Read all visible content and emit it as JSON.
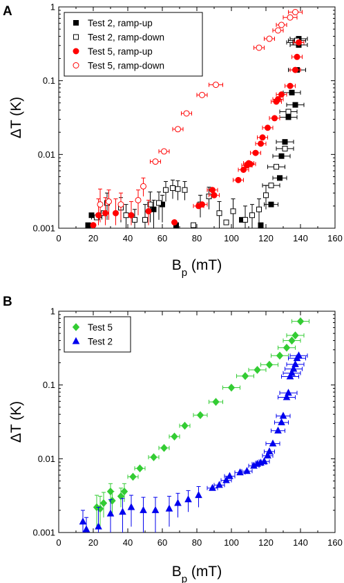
{
  "chart_data": [
    {
      "panel_label": "A",
      "type": "scatter",
      "xlabel": "B",
      "xlabel_sub": "p",
      "xlabel_unit": " (mT)",
      "ylabel": "ΔT (K)",
      "xlim": [
        0,
        160
      ],
      "ylim": [
        0.001,
        1
      ],
      "yscale": "log",
      "x_ticks": [
        "0",
        "20",
        "40",
        "60",
        "80",
        "100",
        "120",
        "140",
        "160"
      ],
      "y_ticks": [
        "0.001",
        "0.01",
        "0.1",
        "1"
      ],
      "legend_position": "top-left",
      "series": [
        {
          "name": "Test 2, ramp-up",
          "marker": "square",
          "filled": true,
          "color": "#000000",
          "points": [
            {
              "x": 17,
              "y": 0.0011
            },
            {
              "x": 19,
              "y": 0.0015
            },
            {
              "x": 55,
              "y": 0.0018,
              "ylo": 0.001,
              "yhi": 0.0024
            },
            {
              "x": 60,
              "y": 0.0021,
              "ylo": 0.0012,
              "yhi": 0.0028
            },
            {
              "x": 68,
              "y": 0.0011
            },
            {
              "x": 106,
              "y": 0.0013
            },
            {
              "x": 117,
              "y": 0.0011
            },
            {
              "x": 123,
              "y": 0.0021,
              "xerr": 4
            },
            {
              "x": 128,
              "y": 0.0048,
              "xerr": 4
            },
            {
              "x": 129,
              "y": 0.0095,
              "xerr": 5
            },
            {
              "x": 131,
              "y": 0.0148,
              "xerr": 5
            },
            {
              "x": 133,
              "y": 0.032,
              "xerr": 5
            },
            {
              "x": 135,
              "y": 0.069,
              "xerr": 5
            },
            {
              "x": 137,
              "y": 0.047,
              "xerr": 5
            },
            {
              "x": 138,
              "y": 0.14,
              "xerr": 5
            },
            {
              "x": 139,
              "y": 0.305,
              "xerr": 5
            },
            {
              "x": 139,
              "y": 0.37,
              "xerr": 5
            }
          ]
        },
        {
          "name": "Test 2, ramp-down",
          "marker": "square",
          "filled": false,
          "color": "#000000",
          "points": [
            {
              "x": 22,
              "y": 0.0014,
              "xerr": 3
            },
            {
              "x": 26,
              "y": 0.0016,
              "xerr": 3
            },
            {
              "x": 28,
              "y": 0.0022,
              "ylo": 0.0013,
              "yhi": 0.003
            },
            {
              "x": 36,
              "y": 0.0019,
              "ylo": 0.0012,
              "yhi": 0.0026
            },
            {
              "x": 39,
              "y": 0.0015,
              "ylo": 0.001,
              "yhi": 0.0021
            },
            {
              "x": 44,
              "y": 0.0013,
              "ylo": 0.001,
              "yhi": 0.0018
            },
            {
              "x": 50,
              "y": 0.0013,
              "ylo": 0.001,
              "yhi": 0.0021
            },
            {
              "x": 53,
              "y": 0.0021,
              "ylo": 0.0012,
              "yhi": 0.0031
            },
            {
              "x": 58,
              "y": 0.0022,
              "ylo": 0.0013,
              "yhi": 0.0031
            },
            {
              "x": 62,
              "y": 0.0033,
              "ylo": 0.0023,
              "yhi": 0.0043
            },
            {
              "x": 66,
              "y": 0.0035,
              "ylo": 0.0025,
              "yhi": 0.0045
            },
            {
              "x": 69,
              "y": 0.0034,
              "ylo": 0.0024,
              "yhi": 0.0044
            },
            {
              "x": 73,
              "y": 0.0033,
              "ylo": 0.0024,
              "yhi": 0.0043
            },
            {
              "x": 78,
              "y": 0.0011
            },
            {
              "x": 82,
              "y": 0.0021,
              "ylo": 0.0014,
              "yhi": 0.0028
            },
            {
              "x": 87,
              "y": 0.0027,
              "ylo": 0.0018,
              "yhi": 0.0036
            },
            {
              "x": 93,
              "y": 0.0016,
              "ylo": 0.001,
              "yhi": 0.0023
            },
            {
              "x": 97,
              "y": 0.0012
            },
            {
              "x": 101,
              "y": 0.0017,
              "ylo": 0.001,
              "yhi": 0.0025
            },
            {
              "x": 108,
              "y": 0.0013,
              "ylo": 0.001,
              "yhi": 0.002
            },
            {
              "x": 112,
              "y": 0.0015,
              "ylo": 0.001,
              "yhi": 0.0021
            },
            {
              "x": 116,
              "y": 0.0018,
              "ylo": 0.0012,
              "yhi": 0.0025
            },
            {
              "x": 120,
              "y": 0.0028,
              "ylo": 0.0018,
              "yhi": 0.0038
            },
            {
              "x": 123,
              "y": 0.0038,
              "xerr": 5
            },
            {
              "x": 126,
              "y": 0.0068,
              "xerr": 5
            },
            {
              "x": 131,
              "y": 0.012,
              "xerr": 5
            },
            {
              "x": 133,
              "y": 0.038,
              "xerr": 5
            },
            {
              "x": 137,
              "y": 0.33,
              "xerr": 5
            },
            {
              "x": 138,
              "y": 0.35,
              "xerr": 5
            }
          ]
        },
        {
          "name": "Test 5, ramp-up",
          "marker": "circle",
          "filled": true,
          "color": "#ff0000",
          "points": [
            {
              "x": 20,
              "y": 0.0011
            },
            {
              "x": 23,
              "y": 0.0015,
              "ylo": 0.0011,
              "yhi": 0.0025
            },
            {
              "x": 27,
              "y": 0.0016,
              "ylo": 0.0011,
              "yhi": 0.0026
            },
            {
              "x": 33,
              "y": 0.0016,
              "ylo": 0.0011,
              "yhi": 0.0025
            },
            {
              "x": 42,
              "y": 0.0015,
              "ylo": 0.0011,
              "yhi": 0.0023
            },
            {
              "x": 52,
              "y": 0.0017,
              "ylo": 0.0011,
              "yhi": 0.0024
            },
            {
              "x": 67,
              "y": 0.0012
            },
            {
              "x": 81,
              "y": 0.002,
              "xerr": 3
            },
            {
              "x": 83,
              "y": 0.0021,
              "xerr": 3
            },
            {
              "x": 89,
              "y": 0.0033,
              "xerr": 3
            },
            {
              "x": 90,
              "y": 0.0028,
              "xerr": 3
            },
            {
              "x": 104,
              "y": 0.0045,
              "xerr": 3
            },
            {
              "x": 107,
              "y": 0.0062,
              "xerr": 3
            },
            {
              "x": 109,
              "y": 0.0071,
              "xerr": 3
            },
            {
              "x": 110,
              "y": 0.0076,
              "xerr": 3
            },
            {
              "x": 111,
              "y": 0.0074,
              "xerr": 3
            },
            {
              "x": 114,
              "y": 0.0105,
              "xerr": 3
            },
            {
              "x": 117,
              "y": 0.014,
              "xerr": 3
            },
            {
              "x": 118,
              "y": 0.017,
              "xerr": 3
            },
            {
              "x": 121,
              "y": 0.023,
              "xerr": 3
            },
            {
              "x": 125,
              "y": 0.031,
              "xerr": 3
            },
            {
              "x": 126,
              "y": 0.052,
              "xerr": 3
            },
            {
              "x": 127,
              "y": 0.056,
              "xerr": 3
            },
            {
              "x": 129,
              "y": 0.065,
              "xerr": 3
            },
            {
              "x": 134,
              "y": 0.085,
              "xerr": 3
            },
            {
              "x": 137,
              "y": 0.14,
              "xerr": 3
            },
            {
              "x": 138,
              "y": 0.21,
              "xerr": 3
            },
            {
              "x": 139,
              "y": 0.33,
              "xerr": 3
            }
          ]
        },
        {
          "name": "Test 5, ramp-down",
          "marker": "circle",
          "filled": false,
          "color": "#ff0000",
          "points": [
            {
              "x": 24,
              "y": 0.0021,
              "ylo": 0.0012,
              "yhi": 0.0034
            },
            {
              "x": 29,
              "y": 0.0023,
              "ylo": 0.0013,
              "yhi": 0.0033
            },
            {
              "x": 36,
              "y": 0.0021,
              "ylo": 0.0013,
              "yhi": 0.003
            },
            {
              "x": 46,
              "y": 0.0024,
              "ylo": 0.0015,
              "yhi": 0.0033
            },
            {
              "x": 49,
              "y": 0.0037,
              "ylo": 0.0027,
              "yhi": 0.0048
            },
            {
              "x": 56,
              "y": 0.008,
              "xerr": 3
            },
            {
              "x": 61,
              "y": 0.011,
              "xerr": 3
            },
            {
              "x": 69,
              "y": 0.022,
              "xerr": 3
            },
            {
              "x": 74,
              "y": 0.036,
              "xerr": 3
            },
            {
              "x": 83,
              "y": 0.064,
              "xerr": 3
            },
            {
              "x": 91,
              "y": 0.088,
              "xerr": 4
            },
            {
              "x": 116,
              "y": 0.28,
              "xerr": 3
            },
            {
              "x": 122,
              "y": 0.37,
              "xerr": 3
            },
            {
              "x": 127,
              "y": 0.48,
              "xerr": 3
            },
            {
              "x": 129,
              "y": 0.57,
              "xerr": 3
            },
            {
              "x": 134,
              "y": 0.72,
              "xerr": 4
            },
            {
              "x": 137,
              "y": 0.85,
              "xerr": 4
            }
          ]
        }
      ]
    },
    {
      "panel_label": "B",
      "type": "scatter",
      "xlabel": "B",
      "xlabel_sub": "p",
      "xlabel_unit": " (mT)",
      "ylabel": "ΔT (K)",
      "xlim": [
        0,
        160
      ],
      "ylim": [
        0.001,
        1
      ],
      "yscale": "log",
      "x_ticks": [
        "0",
        "20",
        "40",
        "60",
        "80",
        "100",
        "120",
        "140",
        "160"
      ],
      "y_ticks": [
        "0.001",
        "0.01",
        "0.1",
        "1"
      ],
      "legend_position": "top-left",
      "series": [
        {
          "name": "Test 5",
          "marker": "diamond",
          "filled": true,
          "color": "#33cc33",
          "points": [
            {
              "x": 22,
              "y": 0.0022,
              "ylo": 0.0012,
              "yhi": 0.0032
            },
            {
              "x": 24,
              "y": 0.0021,
              "ylo": 0.0012,
              "yhi": 0.0031
            },
            {
              "x": 26,
              "y": 0.0025,
              "ylo": 0.0016,
              "yhi": 0.0035
            },
            {
              "x": 30,
              "y": 0.0036,
              "ylo": 0.0025,
              "yhi": 0.0046
            },
            {
              "x": 31,
              "y": 0.0027,
              "ylo": 0.0018,
              "yhi": 0.0036
            },
            {
              "x": 36,
              "y": 0.0031,
              "ylo": 0.0022,
              "yhi": 0.004
            },
            {
              "x": 38,
              "y": 0.0036,
              "ylo": 0.0026,
              "yhi": 0.0046
            },
            {
              "x": 43,
              "y": 0.0057,
              "xerr": 3
            },
            {
              "x": 47,
              "y": 0.0074,
              "xerr": 3
            },
            {
              "x": 55,
              "y": 0.0105,
              "xerr": 3
            },
            {
              "x": 61,
              "y": 0.014,
              "xerr": 3
            },
            {
              "x": 67,
              "y": 0.02,
              "xerr": 3
            },
            {
              "x": 73,
              "y": 0.028,
              "xerr": 3
            },
            {
              "x": 82,
              "y": 0.039,
              "xerr": 4
            },
            {
              "x": 91,
              "y": 0.059,
              "xerr": 4
            },
            {
              "x": 100,
              "y": 0.092,
              "xerr": 5
            },
            {
              "x": 108,
              "y": 0.132,
              "xerr": 5
            },
            {
              "x": 115,
              "y": 0.16,
              "xerr": 5
            },
            {
              "x": 122,
              "y": 0.188,
              "xerr": 5
            },
            {
              "x": 128,
              "y": 0.25,
              "xerr": 5
            },
            {
              "x": 132,
              "y": 0.32,
              "xerr": 5
            },
            {
              "x": 135,
              "y": 0.4,
              "xerr": 5
            },
            {
              "x": 137,
              "y": 0.47,
              "xerr": 5
            },
            {
              "x": 140,
              "y": 0.73,
              "xerr": 5
            }
          ]
        },
        {
          "name": "Test 2",
          "marker": "triangle",
          "filled": true,
          "color": "#0000ee",
          "points": [
            {
              "x": 14,
              "y": 0.0014,
              "ylo": 0.001,
              "yhi": 0.002
            },
            {
              "x": 16,
              "y": 0.0011,
              "ylo": 0.001,
              "yhi": 0.0016
            },
            {
              "x": 23,
              "y": 0.0012,
              "ylo": 0.001,
              "yhi": 0.0022
            },
            {
              "x": 30,
              "y": 0.0018,
              "ylo": 0.001,
              "yhi": 0.0028
            },
            {
              "x": 37,
              "y": 0.0019,
              "ylo": 0.001,
              "yhi": 0.0029
            },
            {
              "x": 42,
              "y": 0.0022,
              "ylo": 0.0012,
              "yhi": 0.0032
            },
            {
              "x": 49,
              "y": 0.002,
              "ylo": 0.001,
              "yhi": 0.003
            },
            {
              "x": 56,
              "y": 0.002,
              "ylo": 0.001,
              "yhi": 0.003
            },
            {
              "x": 64,
              "y": 0.0021,
              "ylo": 0.0012,
              "yhi": 0.0031
            },
            {
              "x": 69,
              "y": 0.0025,
              "ylo": 0.0016,
              "yhi": 0.0034
            },
            {
              "x": 75,
              "y": 0.0028,
              "ylo": 0.0019,
              "yhi": 0.0037
            },
            {
              "x": 81,
              "y": 0.0032,
              "ylo": 0.0022,
              "yhi": 0.0042
            },
            {
              "x": 89,
              "y": 0.004,
              "xerr": 3
            },
            {
              "x": 93,
              "y": 0.0044,
              "xerr": 3
            },
            {
              "x": 97,
              "y": 0.0051,
              "xerr": 3
            },
            {
              "x": 99,
              "y": 0.0058,
              "xerr": 3
            },
            {
              "x": 105,
              "y": 0.0065,
              "xerr": 3
            },
            {
              "x": 109,
              "y": 0.0068,
              "xerr": 3
            },
            {
              "x": 113,
              "y": 0.008,
              "xerr": 3
            },
            {
              "x": 115,
              "y": 0.0085,
              "xerr": 3
            },
            {
              "x": 117,
              "y": 0.0088,
              "xerr": 3
            },
            {
              "x": 119,
              "y": 0.0092,
              "xerr": 3
            },
            {
              "x": 121,
              "y": 0.011,
              "xerr": 3
            },
            {
              "x": 122,
              "y": 0.0125,
              "xerr": 3
            },
            {
              "x": 124,
              "y": 0.016,
              "xerr": 4
            },
            {
              "x": 127,
              "y": 0.024,
              "xerr": 4
            },
            {
              "x": 129,
              "y": 0.031,
              "xerr": 4
            },
            {
              "x": 130,
              "y": 0.038,
              "xerr": 4
            },
            {
              "x": 132,
              "y": 0.068,
              "xerr": 5
            },
            {
              "x": 133,
              "y": 0.078,
              "xerr": 5
            },
            {
              "x": 134,
              "y": 0.13,
              "xerr": 5
            },
            {
              "x": 135,
              "y": 0.145,
              "xerr": 5
            },
            {
              "x": 136,
              "y": 0.165,
              "xerr": 5
            },
            {
              "x": 137,
              "y": 0.19,
              "xerr": 5
            },
            {
              "x": 138,
              "y": 0.23,
              "xerr": 5
            },
            {
              "x": 139,
              "y": 0.25,
              "xerr": 5
            }
          ]
        }
      ]
    }
  ]
}
